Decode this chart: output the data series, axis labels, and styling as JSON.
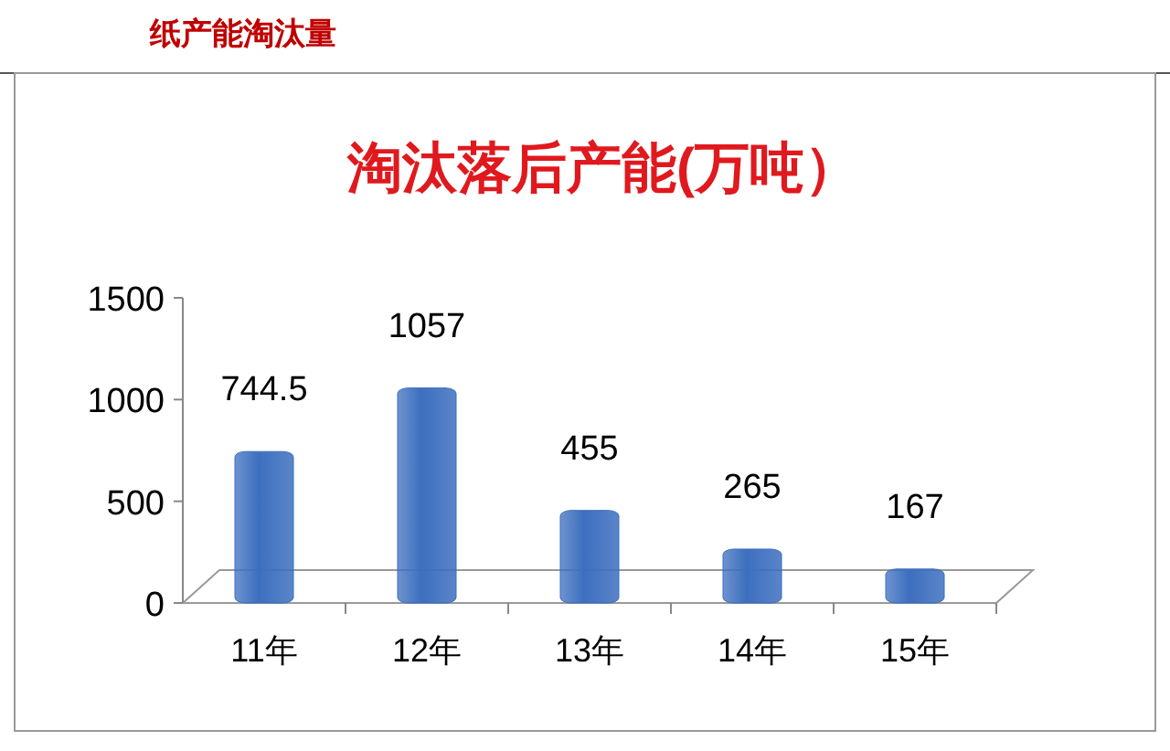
{
  "chart_data": {
    "type": "bar",
    "title": "淘汰落后产能(万吨）",
    "annotations": [
      "纸产能淘汰量"
    ],
    "categories": [
      "11年",
      "12年",
      "13年",
      "14年",
      "15年"
    ],
    "values": [
      744.5,
      1057,
      455,
      265,
      167
    ],
    "color": "#3d6fbf",
    "ylim": [
      0,
      1500
    ],
    "yticks": [
      0,
      500,
      1000,
      1500
    ],
    "data_labels": true,
    "grid": false
  }
}
